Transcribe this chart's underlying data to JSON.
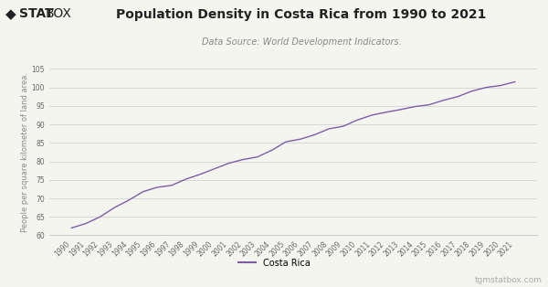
{
  "title": "Population Density in Costa Rica from 1990 to 2021",
  "subtitle": "Data Source: World Development Indicators.",
  "ylabel": "People per square kilometer of land area.",
  "legend_label": "Costa Rica",
  "watermark": "tgmstatbox.com",
  "line_color": "#7b5ea7",
  "background_color": "#f5f5f0",
  "plot_bg_color": "#f5f5f0",
  "grid_color": "#cccccc",
  "years": [
    1990,
    1991,
    1992,
    1993,
    1994,
    1995,
    1996,
    1997,
    1998,
    1999,
    2000,
    2001,
    2002,
    2003,
    2004,
    2005,
    2006,
    2007,
    2008,
    2009,
    2010,
    2011,
    2012,
    2013,
    2014,
    2015,
    2016,
    2017,
    2018,
    2019,
    2020,
    2021
  ],
  "values": [
    62.0,
    63.2,
    65.0,
    67.5,
    69.5,
    71.8,
    73.0,
    73.5,
    75.2,
    76.5,
    78.0,
    79.5,
    80.5,
    81.2,
    83.0,
    85.3,
    86.0,
    87.2,
    88.8,
    89.5,
    91.2,
    92.5,
    93.3,
    94.0,
    94.8,
    95.3,
    96.5,
    97.5,
    99.0,
    100.0,
    100.5,
    101.5
  ],
  "ylim": [
    60,
    105
  ],
  "yticks": [
    60,
    65,
    70,
    75,
    80,
    85,
    90,
    95,
    100,
    105
  ],
  "title_fontsize": 10,
  "subtitle_fontsize": 7,
  "tick_fontsize": 5.5,
  "ylabel_fontsize": 6,
  "legend_fontsize": 7,
  "watermark_fontsize": 6.5
}
